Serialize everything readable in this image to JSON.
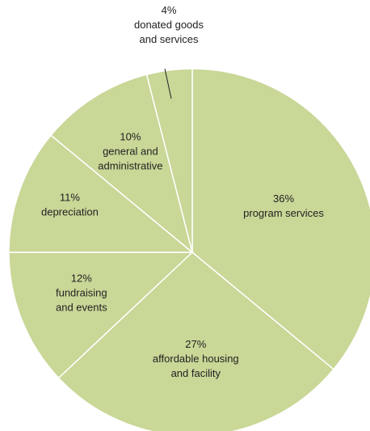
{
  "chart_data": {
    "type": "pie",
    "title": "",
    "fill_color": "#c9d797",
    "slices": [
      {
        "lines": [
          "36%",
          "program services"
        ],
        "value": 36
      },
      {
        "lines": [
          "27%",
          "affordable housing",
          "and facility"
        ],
        "value": 27
      },
      {
        "lines": [
          "12%",
          "fundraising",
          "and events"
        ],
        "value": 12
      },
      {
        "lines": [
          "11%",
          "depreciation"
        ],
        "value": 11
      },
      {
        "lines": [
          "10%",
          "general and",
          "administrative"
        ],
        "value": 10
      },
      {
        "lines": [
          "4%",
          "donated goods",
          "and services"
        ],
        "value": 4
      }
    ]
  }
}
